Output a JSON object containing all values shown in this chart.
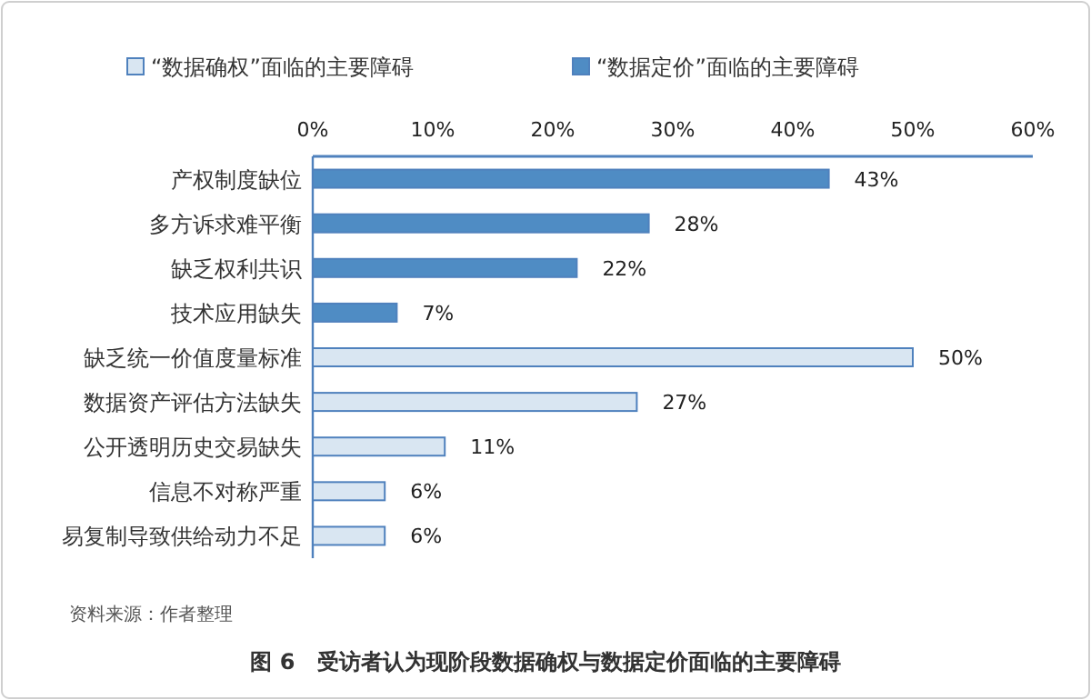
{
  "chart_data": {
    "type": "bar",
    "orientation": "horizontal",
    "title": "图 6　受访者认为现阶段数据确权与数据定价面临的主要障碍",
    "annotations": [
      "资料来源：作者整理"
    ],
    "categories": [
      "产权制度缺位",
      "多方诉求难平衡",
      "缺乏权利共识",
      "技术应用缺失",
      "缺乏统一价值度量标准",
      "数据资产评估方法缺失",
      "公开透明历史交易缺失",
      "信息不对称严重",
      "易复制导致供给动力不足"
    ],
    "series": [
      {
        "name": "“数据确权”面临的主要障碍",
        "color": "#d9e6f2",
        "values": [
          null,
          null,
          null,
          null,
          50,
          27,
          11,
          6,
          6
        ],
        "value_labels": [
          null,
          null,
          null,
          null,
          "50%",
          "27%",
          "11%",
          "6%",
          "6%"
        ]
      },
      {
        "name": "“数据定价”面临的主要障碍",
        "color": "#4f8cc4",
        "values": [
          43,
          28,
          22,
          7,
          null,
          null,
          null,
          null,
          null
        ],
        "value_labels": [
          "43%",
          "28%",
          "22%",
          "7%",
          null,
          null,
          null,
          null,
          null
        ]
      }
    ],
    "xlim": [
      0,
      60
    ],
    "xticks": [
      {
        "value": 0,
        "label": "0%"
      },
      {
        "value": 10,
        "label": "10%"
      },
      {
        "value": 20,
        "label": "20%"
      },
      {
        "value": 30,
        "label": "30%"
      },
      {
        "value": 40,
        "label": "40%"
      },
      {
        "value": 50,
        "label": "50%"
      },
      {
        "value": 60,
        "label": "60%"
      }
    ],
    "legend": "top",
    "grid": false
  }
}
